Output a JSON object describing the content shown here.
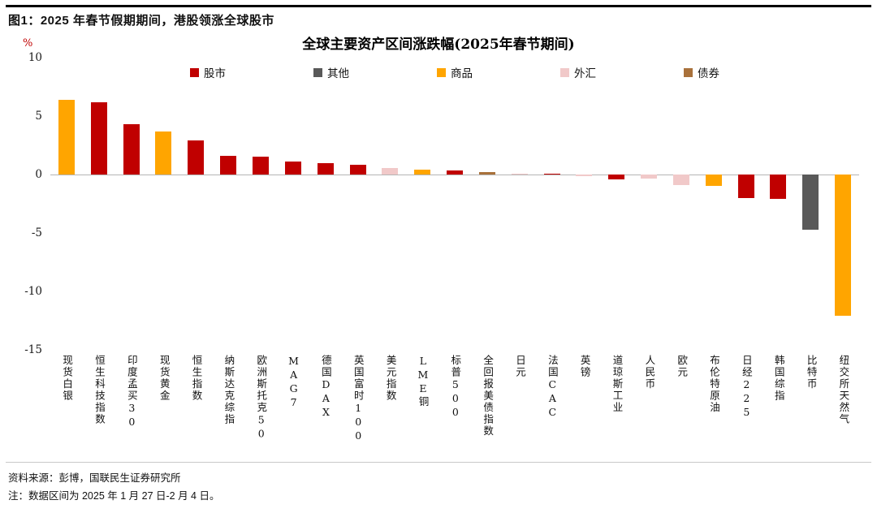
{
  "header": {
    "title": "图1：2025 年春节假期期间，港股领涨全球股市"
  },
  "chart_data": {
    "type": "bar",
    "title": "全球主要资产区间涨跌幅(2025年春节期间)",
    "unit": "%",
    "ylim": [
      -15,
      10
    ],
    "yticks": [
      10,
      5,
      0,
      -5,
      -10,
      -15
    ],
    "grid": "zero-line-only",
    "legend_position": "top-center",
    "legend": [
      {
        "label": "股市",
        "color": "#C00000"
      },
      {
        "label": "其他",
        "color": "#595959"
      },
      {
        "label": "商品",
        "color": "#FFA500"
      },
      {
        "label": "外汇",
        "color": "#F1C9C9"
      },
      {
        "label": "债券",
        "color": "#A9713B"
      }
    ],
    "series_colors": {
      "股市": "#C00000",
      "其他": "#595959",
      "商品": "#FFA500",
      "外汇": "#F1C9C9",
      "债券": "#A9713B"
    },
    "bars": [
      {
        "label": "现货白银",
        "value": 6.4,
        "series": "商品"
      },
      {
        "label": "恒生科技指数",
        "value": 6.2,
        "series": "股市"
      },
      {
        "label": "印度孟买30",
        "value": 4.3,
        "series": "股市"
      },
      {
        "label": "现货黄金",
        "value": 3.7,
        "series": "商品"
      },
      {
        "label": "恒生指数",
        "value": 2.9,
        "series": "股市"
      },
      {
        "label": "纳斯达克综指",
        "value": 1.6,
        "series": "股市"
      },
      {
        "label": "欧洲斯托克50",
        "value": 1.5,
        "series": "股市"
      },
      {
        "label": "MAG7",
        "value": 1.1,
        "series": "股市"
      },
      {
        "label": "德国DAX",
        "value": 1.0,
        "series": "股市"
      },
      {
        "label": "英国富时100",
        "value": 0.8,
        "series": "股市"
      },
      {
        "label": "美元指数",
        "value": 0.55,
        "series": "外汇"
      },
      {
        "label": "LME铜",
        "value": 0.45,
        "series": "商品"
      },
      {
        "label": "标普500",
        "value": 0.35,
        "series": "股市"
      },
      {
        "label": "全回报美债指数",
        "value": 0.2,
        "series": "债券"
      },
      {
        "label": "日元",
        "value": 0.1,
        "series": "外汇"
      },
      {
        "label": "法国CAC",
        "value": 0.05,
        "series": "股市"
      },
      {
        "label": "英镑",
        "value": -0.1,
        "series": "外汇"
      },
      {
        "label": "道琼斯工业",
        "value": -0.4,
        "series": "股市"
      },
      {
        "label": "人民币",
        "value": -0.35,
        "series": "外汇"
      },
      {
        "label": "欧元",
        "value": -0.9,
        "series": "外汇"
      },
      {
        "label": "布伦特原油",
        "value": -1.0,
        "series": "商品"
      },
      {
        "label": "日经225",
        "value": -2.0,
        "series": "股市"
      },
      {
        "label": "韩国综指",
        "value": -2.1,
        "series": "股市"
      },
      {
        "label": "比特币",
        "value": -4.7,
        "series": "其他"
      },
      {
        "label": "纽交所天然气",
        "value": -12.1,
        "series": "商品"
      }
    ]
  },
  "footer": {
    "source": "资料来源：彭博，国联民生证券研究所",
    "note": "注：数据区间为 2025 年 1 月 27 日-2 月 4 日。"
  }
}
